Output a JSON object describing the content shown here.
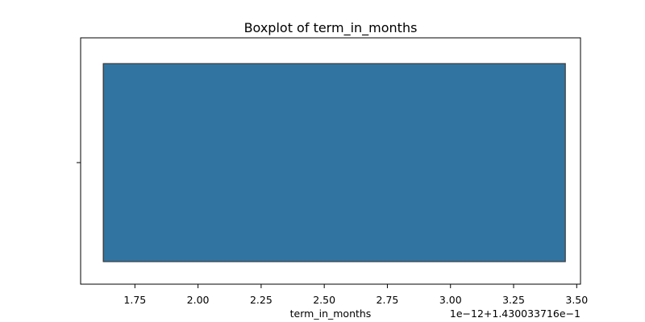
{
  "chart_data": {
    "type": "boxplot",
    "title": "Boxplot of term_in_months",
    "xlabel": "term_in_months",
    "ylabel": "",
    "offset_text": "1e−12+1.430033716e−1",
    "xlim": [
      1.535,
      3.515
    ],
    "xticks": [
      1.75,
      2.0,
      2.25,
      2.5,
      2.75,
      3.0,
      3.25,
      3.5
    ],
    "xtick_labels": [
      "1.75",
      "2.00",
      "2.25",
      "2.50",
      "2.75",
      "3.00",
      "3.25",
      "3.50"
    ],
    "box": {
      "q1": 1.625,
      "median": 1.625,
      "q3": 3.455,
      "whisker_low": 1.625,
      "whisker_high": 3.455
    },
    "box_color": "#3274a1",
    "edge_color": "#3d3d3d",
    "grid": false,
    "legend": "none"
  }
}
